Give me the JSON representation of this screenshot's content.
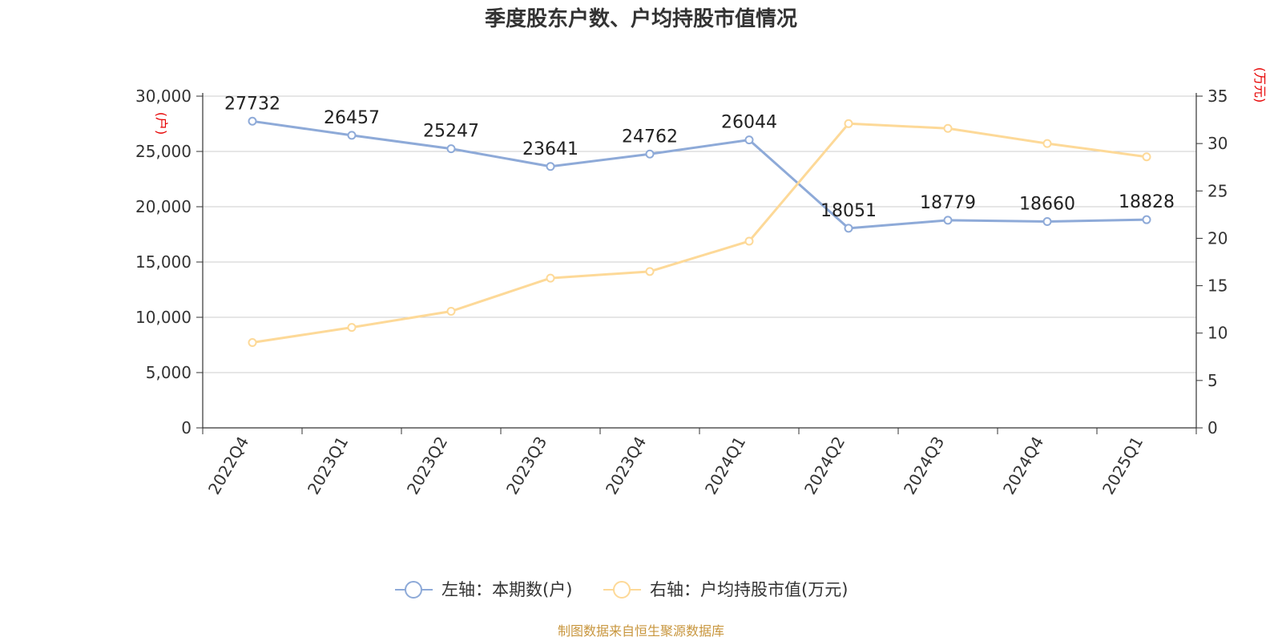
{
  "chart_data": {
    "type": "line",
    "title": "季度股东户数、户均持股市值情况",
    "categories": [
      "2022Q4",
      "2023Q1",
      "2023Q2",
      "2023Q3",
      "2023Q4",
      "2024Q1",
      "2024Q2",
      "2024Q3",
      "2024Q4",
      "2025Q1"
    ],
    "left_axis": {
      "unit": "(户)",
      "min": 0,
      "max": 30000,
      "ticks": [
        "0",
        "5,000",
        "10,000",
        "15,000",
        "20,000",
        "25,000",
        "30,000"
      ]
    },
    "right_axis": {
      "unit": "(万元)",
      "min": 0,
      "max": 35,
      "ticks": [
        "0",
        "5",
        "10",
        "15",
        "20",
        "25",
        "30",
        "35"
      ]
    },
    "series": [
      {
        "name": "左轴：本期数(户)",
        "axis": "left",
        "color": "#8eaad8",
        "values": [
          27732,
          26457,
          25247,
          23641,
          24762,
          26044,
          18051,
          18779,
          18660,
          18828
        ],
        "labels": [
          "27732",
          "26457",
          "25247",
          "23641",
          "24762",
          "26044",
          "18051",
          "18779",
          "18660",
          "18828"
        ]
      },
      {
        "name": "右轴：户均持股市值(万元)",
        "axis": "right",
        "color": "#fdd998",
        "values": [
          9.0,
          10.6,
          12.3,
          15.8,
          16.5,
          19.7,
          32.1,
          31.6,
          30.0,
          28.6
        ]
      }
    ],
    "grid": true,
    "legend_position": "bottom-center"
  },
  "footer": {
    "source": "制图数据来自恒生聚源数据库"
  }
}
